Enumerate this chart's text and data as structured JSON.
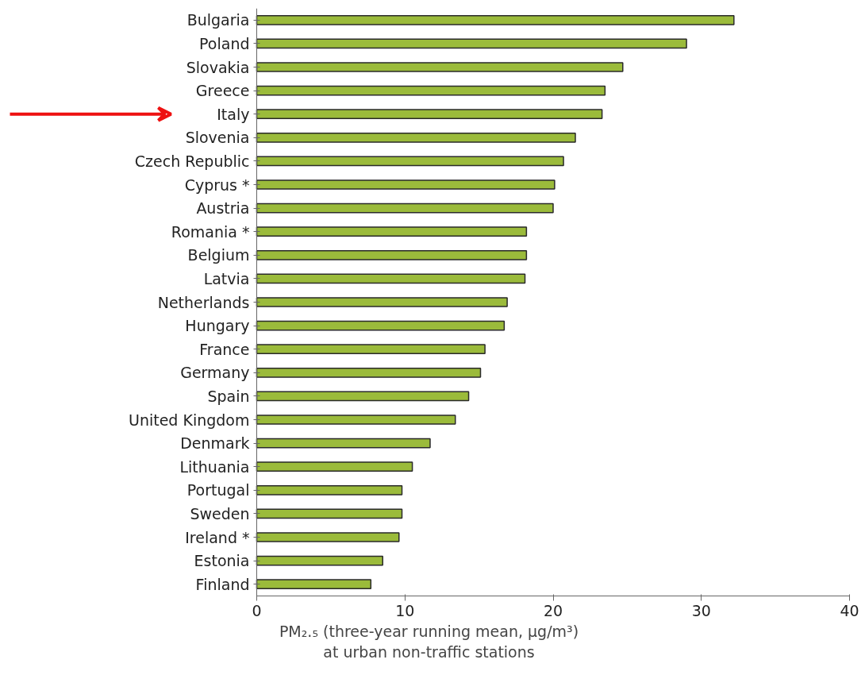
{
  "chart_data": {
    "type": "bar",
    "orientation": "horizontal",
    "categories": [
      "Bulgaria",
      "Poland",
      "Slovakia",
      "Greece",
      "Italy",
      "Slovenia",
      "Czech Republic",
      "Cyprus *",
      "Austria",
      "Romania *",
      "Belgium",
      "Latvia",
      "Netherlands",
      "Hungary",
      "France",
      "Germany",
      "Spain",
      "United Kingdom",
      "Denmark",
      "Lithuania",
      "Portugal",
      "Sweden",
      "Ireland *",
      "Estonia",
      "Finland"
    ],
    "values": [
      32.2,
      29.0,
      24.7,
      23.5,
      23.3,
      21.5,
      20.7,
      20.1,
      20.0,
      18.2,
      18.2,
      18.1,
      16.9,
      16.7,
      15.4,
      15.1,
      14.3,
      13.4,
      11.7,
      10.5,
      9.8,
      9.8,
      9.6,
      8.5,
      7.7
    ],
    "color": "#9bbb3b",
    "xlabel": "PM₂.₅ (three-year running mean, µg/m³)\nat urban non-traffic stations",
    "xlim": [
      0,
      40
    ],
    "xticks": [
      0,
      10,
      20,
      30,
      40
    ],
    "grid": false
  }
}
